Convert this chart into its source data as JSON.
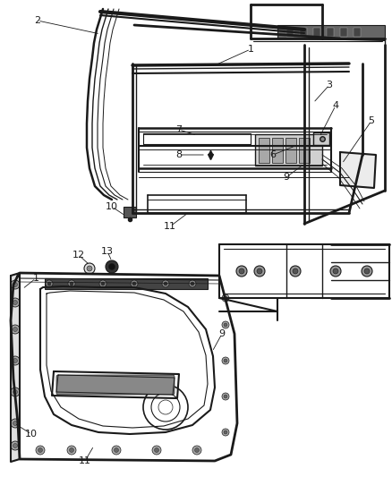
{
  "bg_color": "#ffffff",
  "line_color": "#1a1a1a",
  "label_color": "#111111",
  "fig_w": 4.38,
  "fig_h": 5.33,
  "dpi": 100
}
